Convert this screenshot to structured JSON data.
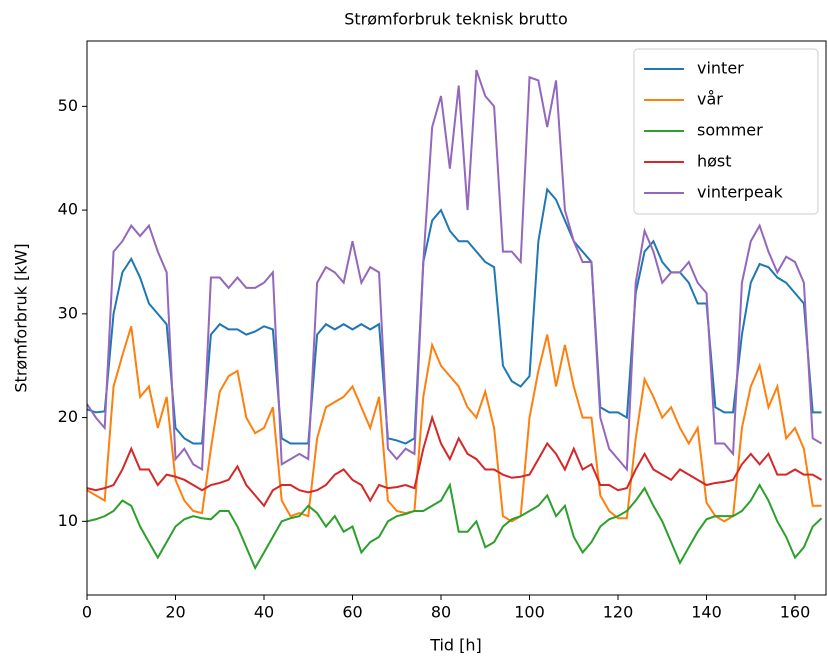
{
  "chart_data": {
    "type": "line",
    "title": "Strømforbruk teknisk brutto",
    "x_label": "Tid [h]",
    "y_label": "Strømforbruk [kW]",
    "x": [
      0,
      2,
      4,
      6,
      8,
      10,
      12,
      14,
      16,
      18,
      20,
      22,
      24,
      26,
      28,
      30,
      32,
      34,
      36,
      38,
      40,
      42,
      44,
      46,
      48,
      50,
      52,
      54,
      56,
      58,
      60,
      62,
      64,
      66,
      68,
      70,
      72,
      74,
      76,
      78,
      80,
      82,
      84,
      86,
      88,
      90,
      92,
      94,
      96,
      98,
      100,
      102,
      104,
      106,
      108,
      110,
      112,
      114,
      116,
      118,
      120,
      122,
      124,
      126,
      128,
      130,
      132,
      134,
      136,
      138,
      140,
      142,
      144,
      146,
      148,
      150,
      152,
      154,
      156,
      158,
      160,
      162,
      164,
      166
    ],
    "series": [
      {
        "name": "vinter",
        "color": "#1f77b4",
        "values": [
          20.8,
          20.5,
          20.6,
          30,
          34,
          35.3,
          33.5,
          31,
          30,
          29,
          19,
          18,
          17.5,
          17.5,
          28,
          29,
          28.5,
          28.5,
          28,
          28.3,
          28.8,
          28.5,
          18,
          17.5,
          17.5,
          17.5,
          28,
          29,
          28.5,
          29,
          28.5,
          29,
          28.5,
          29,
          18,
          17.8,
          17.5,
          18,
          35,
          39,
          40,
          38,
          37,
          37,
          36,
          35,
          34.5,
          25,
          23.5,
          23,
          24,
          37,
          42,
          41,
          39,
          37,
          36,
          35,
          21,
          20.5,
          20.5,
          20,
          32,
          36,
          37,
          35,
          34,
          34,
          33,
          31,
          31,
          21,
          20.5,
          20.5,
          28,
          33,
          34.8,
          34.5,
          33.5,
          33,
          32,
          31,
          20.5,
          20.5
        ]
      },
      {
        "name": "vår",
        "color": "#ff7f0e",
        "values": [
          13,
          12.5,
          12,
          23,
          26,
          28.8,
          22,
          23,
          19,
          22,
          14,
          12,
          11,
          10.8,
          17,
          22.5,
          24,
          24.5,
          20,
          18.5,
          19,
          21,
          12,
          10.5,
          10.8,
          10.5,
          18,
          21,
          21.5,
          22,
          23,
          21,
          19,
          22,
          12,
          11,
          10.8,
          11,
          22,
          27,
          25,
          24,
          23,
          21,
          20,
          22.5,
          19,
          10.5,
          10,
          10.5,
          20,
          24.5,
          28,
          23,
          27,
          23,
          20,
          20,
          12.5,
          11,
          10.3,
          10.3,
          18,
          23.7,
          22,
          20,
          21,
          19,
          17.5,
          19,
          11.8,
          10.5,
          10,
          10.5,
          19,
          23,
          25,
          21,
          23,
          18,
          19,
          17,
          11.5,
          11.5
        ]
      },
      {
        "name": "sommer",
        "color": "#2ca02c",
        "values": [
          10,
          10.2,
          10.5,
          11,
          12,
          11.5,
          9.5,
          8,
          6.5,
          8,
          9.5,
          10.2,
          10.5,
          10.3,
          10.2,
          11,
          11,
          9.5,
          7.5,
          5.5,
          7,
          8.5,
          10,
          10.3,
          10.5,
          11.5,
          10.8,
          9.5,
          10.5,
          9,
          9.5,
          7,
          8,
          8.5,
          10,
          10.5,
          10.7,
          11,
          11,
          11.5,
          12,
          13.5,
          9,
          9,
          10,
          7.5,
          8,
          9.5,
          10.2,
          10.5,
          11,
          11.5,
          12.5,
          10.5,
          11.5,
          8.5,
          7,
          8,
          9.5,
          10.2,
          10.5,
          11,
          12,
          13.2,
          11.5,
          10,
          8,
          6,
          7.5,
          9,
          10.2,
          10.5,
          10.5,
          10.5,
          11,
          12,
          13.5,
          12,
          10,
          8.5,
          6.5,
          7.5,
          9.5,
          10.3
        ]
      },
      {
        "name": "høst",
        "color": "#d62728",
        "values": [
          13.2,
          13,
          13.2,
          13.5,
          15,
          17,
          15,
          15,
          13.5,
          14.5,
          14.3,
          14,
          13.5,
          13,
          13.5,
          13.7,
          14,
          15.3,
          13.5,
          12.5,
          11.5,
          13,
          13.5,
          13.5,
          13,
          12.8,
          13,
          13.5,
          14.5,
          15,
          14,
          13.5,
          12,
          13.5,
          13.2,
          13.3,
          13.5,
          13.2,
          17,
          20,
          17.5,
          16,
          18,
          16.5,
          16,
          15,
          15,
          14.5,
          14.2,
          14.3,
          14.5,
          16,
          17.5,
          16.5,
          15,
          17,
          15,
          15.5,
          13.5,
          13.5,
          13,
          13.2,
          15,
          16.5,
          15,
          14.5,
          14,
          15,
          14.5,
          14,
          13.5,
          13.7,
          13.8,
          14,
          15.5,
          16.5,
          15.5,
          16.5,
          14.5,
          14.5,
          15,
          14.5,
          14.5,
          14
        ]
      },
      {
        "name": "vinterpeak",
        "color": "#9467bd",
        "values": [
          21.3,
          20,
          19,
          36,
          37,
          38.5,
          37.5,
          38.5,
          36,
          34,
          16,
          17,
          15.5,
          15,
          33.5,
          33.5,
          32.5,
          33.5,
          32.5,
          32.5,
          33,
          34,
          15.5,
          16,
          16.5,
          16,
          33,
          34.5,
          34,
          33,
          37,
          33,
          34.5,
          34,
          17,
          16,
          17,
          16.5,
          35,
          48,
          51,
          44,
          52,
          40,
          53.5,
          51,
          50,
          36,
          36,
          35,
          52.8,
          52.5,
          48,
          52.5,
          40,
          37,
          35,
          35,
          20,
          17,
          16,
          15,
          33,
          38,
          36,
          33,
          34,
          34,
          35,
          33,
          32,
          17.5,
          17.5,
          16.5,
          33,
          37,
          38.5,
          36,
          34,
          35.5,
          35,
          33,
          18,
          17.5
        ]
      }
    ],
    "xlim": [
      0,
      167
    ],
    "ylim": [
      2.9,
      56.3
    ],
    "xticks": [
      0,
      20,
      40,
      60,
      80,
      100,
      120,
      140,
      160
    ],
    "yticks": [
      10,
      20,
      30,
      40,
      50
    ],
    "grid": false,
    "legend": "upper right"
  }
}
